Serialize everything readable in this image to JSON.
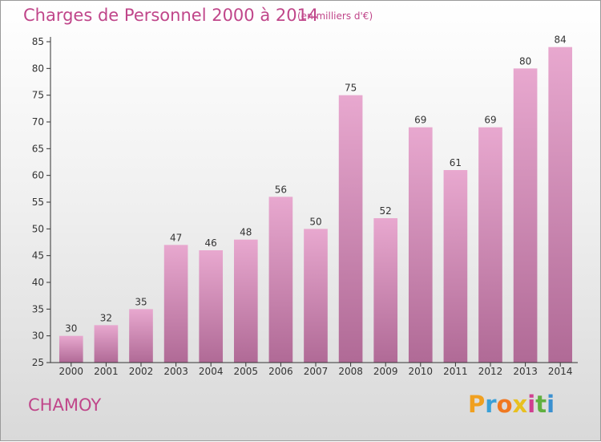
{
  "header": {
    "title": "Charges de Personnel 2000 à 2014",
    "unit": "(en milliers d'€)"
  },
  "footer": {
    "commune": "CHAMOY",
    "logo_letters": [
      "P",
      "r",
      "o",
      "x",
      "i",
      "t",
      "i"
    ],
    "logo_colors": [
      "#f0a020",
      "#3aa0d8",
      "#f07820",
      "#e8c020",
      "#d04090",
      "#60b040",
      "#3a90d0"
    ]
  },
  "colors": {
    "bar_top": "#e8a8cf",
    "bar_bottom": "#b06a96",
    "text": "#c0468a",
    "axis": "#333333"
  },
  "chart_data": {
    "type": "bar",
    "categories": [
      "2000",
      "2001",
      "2002",
      "2003",
      "2004",
      "2005",
      "2006",
      "2007",
      "2008",
      "2009",
      "2010",
      "2011",
      "2012",
      "2013",
      "2014"
    ],
    "values": [
      30,
      32,
      35,
      47,
      46,
      48,
      56,
      50,
      75,
      52,
      69,
      61,
      69,
      80,
      84
    ],
    "value_labels": [
      "30",
      "32",
      "35",
      "47",
      "46",
      "48",
      "56",
      "50",
      "75",
      "52",
      "69",
      "61",
      "69",
      "80",
      "84"
    ],
    "y_ticks": [
      25,
      30,
      35,
      40,
      45,
      50,
      55,
      60,
      65,
      70,
      75,
      80,
      85
    ],
    "y_tick_labels": [
      "25",
      "30",
      "35",
      "40",
      "45",
      "50",
      "55",
      "60",
      "65",
      "70",
      "75",
      "80",
      "85"
    ],
    "ylim": [
      25,
      85
    ],
    "grid": false
  }
}
